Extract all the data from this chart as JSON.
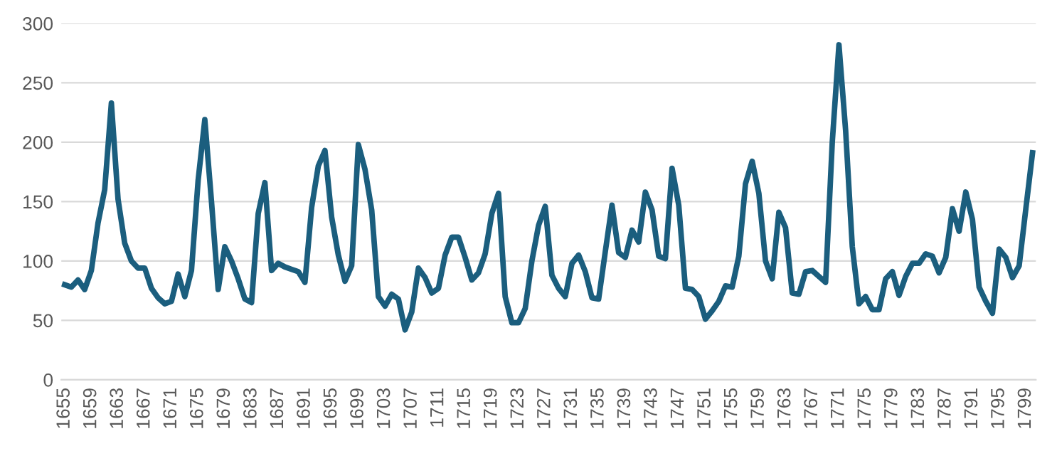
{
  "chart_data": {
    "type": "line",
    "categories": [
      "1655",
      null,
      null,
      null,
      "1659",
      null,
      null,
      null,
      "1663",
      null,
      null,
      null,
      "1667",
      null,
      null,
      null,
      "1671",
      null,
      null,
      null,
      "1675",
      null,
      null,
      null,
      "1679",
      null,
      null,
      null,
      "1683",
      null,
      null,
      null,
      "1687",
      null,
      null,
      null,
      "1691",
      null,
      null,
      null,
      "1695",
      null,
      null,
      null,
      "1699",
      null,
      null,
      null,
      "1703",
      null,
      null,
      null,
      "1707",
      null,
      null,
      null,
      "1711",
      null,
      null,
      null,
      "1715",
      null,
      null,
      null,
      "1719",
      null,
      null,
      null,
      "1723",
      null,
      null,
      null,
      "1727",
      null,
      null,
      null,
      "1731",
      null,
      null,
      null,
      "1735",
      null,
      null,
      null,
      "1739",
      null,
      null,
      null,
      "1743",
      null,
      null,
      null,
      "1747",
      null,
      null,
      null,
      "1751",
      null,
      null,
      null,
      "1755",
      null,
      null,
      null,
      "1759",
      null,
      null,
      null,
      "1763",
      null,
      null,
      null,
      "1767",
      null,
      null,
      null,
      "1771",
      null,
      null,
      null,
      "1775",
      null,
      null,
      null,
      "1779",
      null,
      null,
      null,
      "1783",
      null,
      null,
      null,
      "1787",
      null,
      null,
      null,
      "1791",
      null,
      null,
      null,
      "1795",
      null,
      null,
      null,
      "1799",
      null
    ],
    "series": [
      {
        "color": "#1b5e7e",
        "values": [
          80,
          78,
          84,
          76,
          92,
          132,
          160,
          233,
          152,
          115,
          100,
          94,
          94,
          77,
          69,
          64,
          66,
          89,
          70,
          92,
          168,
          219,
          150,
          76,
          112,
          100,
          85,
          68,
          65,
          140,
          166,
          92,
          98,
          95,
          93,
          91,
          82,
          145,
          180,
          193,
          137,
          105,
          83,
          96,
          198,
          177,
          143,
          70,
          62,
          72,
          68,
          42,
          57,
          94,
          86,
          73,
          77,
          105,
          120,
          120,
          103,
          84,
          90,
          106,
          140,
          157,
          70,
          48,
          48,
          60,
          100,
          130,
          146,
          88,
          77,
          70,
          98,
          105,
          91,
          69,
          68,
          108,
          147,
          107,
          103,
          126,
          116,
          158,
          143,
          104,
          102,
          178,
          147,
          77,
          76,
          70,
          51,
          58,
          66,
          79,
          78,
          104,
          165,
          184,
          157,
          100,
          85,
          141,
          128,
          73,
          72,
          91,
          92,
          87,
          82,
          200,
          282,
          210,
          112,
          64,
          70,
          59,
          59,
          85,
          91,
          71,
          87,
          98,
          98,
          106,
          104,
          90,
          103,
          144,
          125,
          158,
          135,
          78,
          66,
          56,
          110,
          103,
          86,
          96,
          144,
          191
        ]
      }
    ],
    "ylim": [
      0,
      300
    ],
    "yticks": [
      0,
      50,
      100,
      150,
      200,
      250,
      300
    ],
    "grid": "y",
    "marker": "none",
    "line_style": "solid"
  }
}
